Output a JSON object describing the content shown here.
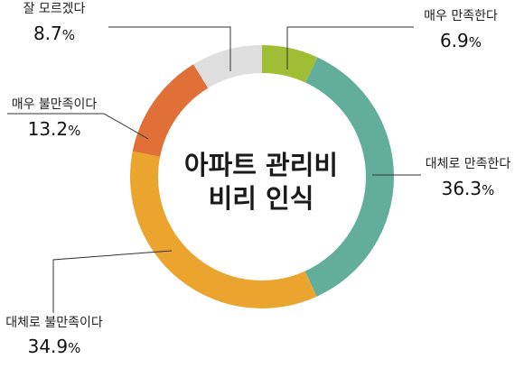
{
  "chart_data": {
    "type": "pie",
    "title": "아파트 관리비 비리 인식",
    "title_lines": [
      "아파트 관리비",
      "비리 인식"
    ],
    "unit": "%",
    "categories": [
      "매우 만족한다",
      "대체로 만족한다",
      "대체로 불만족이다",
      "매우 불만족이다",
      "잘 모르겠다"
    ],
    "values": [
      6.9,
      36.3,
      34.9,
      13.2,
      8.7
    ],
    "value_labels": [
      "6.9",
      "36.3",
      "34.9",
      "13.2",
      "8.7"
    ],
    "colors": [
      "#a0bd36",
      "#63ae9a",
      "#eba52e",
      "#e07038",
      "#dedede"
    ],
    "style": "donut"
  }
}
